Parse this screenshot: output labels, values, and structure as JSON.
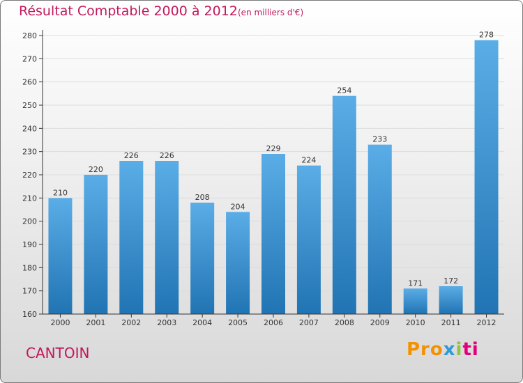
{
  "header": {
    "title": "Résultat Comptable 2000 à 2012",
    "subtitle": "(en milliers d'€)"
  },
  "footer": {
    "commune": "CANTOIN",
    "logo_parts": [
      "Pro",
      "x",
      "i",
      "ti"
    ]
  },
  "colors": {
    "title": "#c2185b",
    "bar_top": "#5aade6",
    "bar_bottom": "#2174b3",
    "grid": "#dcdcdc",
    "axis": "#333333"
  },
  "chart_data": {
    "type": "bar",
    "title": "Résultat Comptable 2000 à 2012",
    "subtitle": "(en milliers d'€)",
    "categories": [
      "2000",
      "2001",
      "2002",
      "2003",
      "2004",
      "2005",
      "2006",
      "2007",
      "2008",
      "2009",
      "2010",
      "2011",
      "2012"
    ],
    "values": [
      210,
      220,
      226,
      226,
      208,
      204,
      229,
      224,
      254,
      233,
      171,
      172,
      278
    ],
    "ylim": [
      160,
      280
    ],
    "yticks": [
      160,
      170,
      180,
      190,
      200,
      210,
      220,
      230,
      240,
      250,
      260,
      270,
      280
    ],
    "grid": true,
    "legend": "none"
  }
}
